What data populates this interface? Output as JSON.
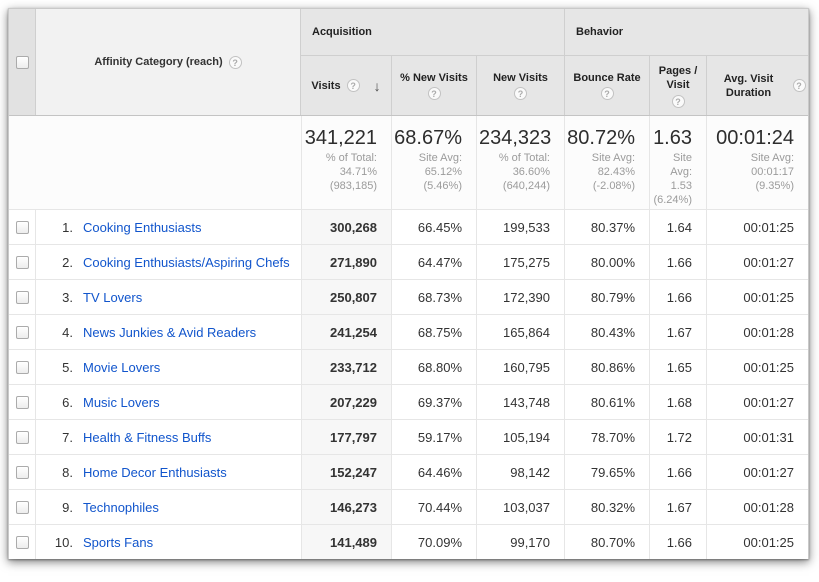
{
  "icons": {
    "help": "?",
    "sort_desc": "↓"
  },
  "colors": {
    "link": "#1155cc",
    "header_bg": "#e6e6e6",
    "sorted_column_bg": "#f7f7f7"
  },
  "table": {
    "dimension_header": {
      "label": "Affinity Category (reach)"
    },
    "groups": {
      "acquisition": "Acquisition",
      "behavior": "Behavior"
    },
    "columns": {
      "visits": "Visits",
      "pct_new_visits": "% New Visits",
      "new_visits": "New Visits",
      "bounce_rate": "Bounce Rate",
      "pages_visit": "Pages / Visit",
      "avg_duration": "Avg. Visit Duration"
    },
    "summary": {
      "visits": {
        "value": "341,221",
        "sub": [
          "% of Total:",
          "34.71%",
          "(983,185)"
        ]
      },
      "pct_new_visits": {
        "value": "68.67%",
        "sub": [
          "Site Avg:",
          "65.12%",
          "(5.46%)"
        ]
      },
      "new_visits": {
        "value": "234,323",
        "sub": [
          "% of Total:",
          "36.60%",
          "(640,244)"
        ]
      },
      "bounce_rate": {
        "value": "80.72%",
        "sub": [
          "Site Avg:",
          "82.43%",
          "(-2.08%)"
        ]
      },
      "pages_visit": {
        "value": "1.63",
        "sub": [
          "Site",
          "Avg:",
          "1.53",
          "(6.24%)"
        ]
      },
      "avg_duration": {
        "value": "00:01:24",
        "sub": [
          "Site Avg:",
          "00:01:17",
          "(9.35%)"
        ]
      }
    },
    "rows": [
      {
        "rank": "1.",
        "name": "Cooking Enthusiasts",
        "visits": "300,268",
        "pct_new": "66.45%",
        "new_visits": "199,533",
        "bounce": "80.37%",
        "pages": "1.64",
        "duration": "00:01:25"
      },
      {
        "rank": "2.",
        "name": "Cooking Enthusiasts/Aspiring Chefs",
        "visits": "271,890",
        "pct_new": "64.47%",
        "new_visits": "175,275",
        "bounce": "80.00%",
        "pages": "1.66",
        "duration": "00:01:27"
      },
      {
        "rank": "3.",
        "name": "TV Lovers",
        "visits": "250,807",
        "pct_new": "68.73%",
        "new_visits": "172,390",
        "bounce": "80.79%",
        "pages": "1.66",
        "duration": "00:01:25"
      },
      {
        "rank": "4.",
        "name": "News Junkies & Avid Readers",
        "visits": "241,254",
        "pct_new": "68.75%",
        "new_visits": "165,864",
        "bounce": "80.43%",
        "pages": "1.67",
        "duration": "00:01:28"
      },
      {
        "rank": "5.",
        "name": "Movie Lovers",
        "visits": "233,712",
        "pct_new": "68.80%",
        "new_visits": "160,795",
        "bounce": "80.86%",
        "pages": "1.65",
        "duration": "00:01:25"
      },
      {
        "rank": "6.",
        "name": "Music Lovers",
        "visits": "207,229",
        "pct_new": "69.37%",
        "new_visits": "143,748",
        "bounce": "80.61%",
        "pages": "1.68",
        "duration": "00:01:27"
      },
      {
        "rank": "7.",
        "name": "Health & Fitness Buffs",
        "visits": "177,797",
        "pct_new": "59.17%",
        "new_visits": "105,194",
        "bounce": "78.70%",
        "pages": "1.72",
        "duration": "00:01:31"
      },
      {
        "rank": "8.",
        "name": "Home Decor Enthusiasts",
        "visits": "152,247",
        "pct_new": "64.46%",
        "new_visits": "98,142",
        "bounce": "79.65%",
        "pages": "1.66",
        "duration": "00:01:27"
      },
      {
        "rank": "9.",
        "name": "Technophiles",
        "visits": "146,273",
        "pct_new": "70.44%",
        "new_visits": "103,037",
        "bounce": "80.32%",
        "pages": "1.67",
        "duration": "00:01:28"
      },
      {
        "rank": "10.",
        "name": "Sports Fans",
        "visits": "141,489",
        "pct_new": "70.09%",
        "new_visits": "99,170",
        "bounce": "80.70%",
        "pages": "1.66",
        "duration": "00:01:25"
      }
    ]
  }
}
